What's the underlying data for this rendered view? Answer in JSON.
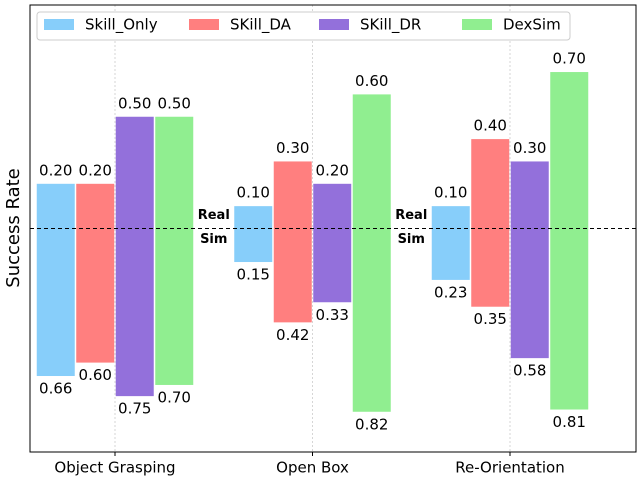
{
  "chart_data": {
    "type": "bar",
    "ylabel": "Success Rate",
    "categories": [
      "Object Grasping",
      "Open Box",
      "Re-Orientation"
    ],
    "ylim": [
      -1,
      1
    ],
    "grid": true,
    "legend": "upper left",
    "annotations": [
      "Real",
      "Sim",
      "Real",
      "Sim"
    ],
    "series": [
      {
        "name": "Skill_Only",
        "color": "#87cefa",
        "values": [
          0.2,
          0.1,
          0.1
        ],
        "value_labels": [
          "0.20",
          "0.10",
          "0.10"
        ],
        "sim_values": [
          0.66,
          0.15,
          0.23
        ]
      },
      {
        "name": "SKill_DA",
        "color": "#ff7f7f",
        "values": [
          0.2,
          0.3,
          0.4
        ],
        "value_labels": [
          "0.20",
          "0.30",
          "0.40"
        ],
        "sim_values": [
          0.6,
          0.42,
          0.35
        ],
        "sim_value_labels": [
          "0.60",
          "0.42",
          "0.35"
        ]
      },
      {
        "name": "SKill_DR",
        "color": "#9370db",
        "values": [
          0.5,
          0.2,
          0.3
        ],
        "value_labels": [
          "0.50",
          "0.20",
          "0.30"
        ],
        "sim_values": [
          0.75,
          0.33,
          0.58
        ]
      },
      {
        "name": "DexSim",
        "color": "#90ee90",
        "values": [
          0.5,
          0.6,
          0.7
        ],
        "value_labels": [
          "0.50",
          "0.60",
          "0.70"
        ],
        "sim_values": [
          0.7,
          0.82,
          0.81
        ],
        "sim_value_labels": [
          "0.70",
          "0.82",
          "0.81"
        ]
      }
    ]
  }
}
